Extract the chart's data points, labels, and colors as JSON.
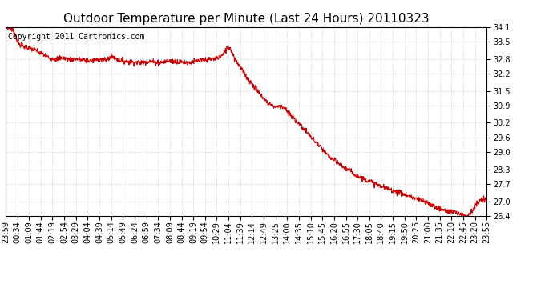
{
  "title": "Outdoor Temperature per Minute (Last 24 Hours) 20110323",
  "copyright_text": "Copyright 2011 Cartronics.com",
  "line_color": "#cc0000",
  "background_color": "#ffffff",
  "grid_color": "#bbbbbb",
  "ylim": [
    26.4,
    34.1
  ],
  "yticks": [
    26.4,
    27.0,
    27.7,
    28.3,
    29.0,
    29.6,
    30.2,
    30.9,
    31.5,
    32.2,
    32.8,
    33.5,
    34.1
  ],
  "xtick_labels": [
    "23:59",
    "00:34",
    "01:09",
    "01:44",
    "02:19",
    "02:54",
    "03:29",
    "04:04",
    "04:39",
    "05:14",
    "05:49",
    "06:24",
    "06:59",
    "07:34",
    "08:09",
    "08:44",
    "09:19",
    "09:54",
    "10:29",
    "11:04",
    "11:39",
    "12:14",
    "12:49",
    "13:25",
    "14:00",
    "14:35",
    "15:10",
    "15:45",
    "16:20",
    "16:55",
    "17:30",
    "18:05",
    "18:40",
    "19:15",
    "19:50",
    "20:25",
    "21:00",
    "21:35",
    "22:10",
    "22:45",
    "23:20",
    "23:55"
  ],
  "title_fontsize": 11,
  "tick_fontsize": 7,
  "copyright_fontsize": 7,
  "line_width": 0.8,
  "waypoints": [
    [
      0,
      34.1
    ],
    [
      10,
      34.08
    ],
    [
      20,
      34.0
    ],
    [
      30,
      33.75
    ],
    [
      40,
      33.4
    ],
    [
      55,
      33.3
    ],
    [
      70,
      33.25
    ],
    [
      90,
      33.15
    ],
    [
      110,
      33.0
    ],
    [
      130,
      32.85
    ],
    [
      150,
      32.8
    ],
    [
      170,
      32.85
    ],
    [
      190,
      32.78
    ],
    [
      210,
      32.8
    ],
    [
      230,
      32.75
    ],
    [
      260,
      32.72
    ],
    [
      280,
      32.8
    ],
    [
      300,
      32.75
    ],
    [
      320,
      32.9
    ],
    [
      340,
      32.75
    ],
    [
      370,
      32.68
    ],
    [
      400,
      32.65
    ],
    [
      430,
      32.7
    ],
    [
      460,
      32.65
    ],
    [
      490,
      32.72
    ],
    [
      520,
      32.68
    ],
    [
      550,
      32.65
    ],
    [
      580,
      32.72
    ],
    [
      610,
      32.78
    ],
    [
      630,
      32.82
    ],
    [
      650,
      32.95
    ],
    [
      665,
      33.28
    ],
    [
      672,
      33.25
    ],
    [
      685,
      32.85
    ],
    [
      705,
      32.4
    ],
    [
      725,
      32.0
    ],
    [
      745,
      31.65
    ],
    [
      765,
      31.3
    ],
    [
      785,
      31.0
    ],
    [
      805,
      30.85
    ],
    [
      825,
      30.88
    ],
    [
      835,
      30.8
    ],
    [
      845,
      30.6
    ],
    [
      865,
      30.35
    ],
    [
      885,
      30.05
    ],
    [
      905,
      29.75
    ],
    [
      925,
      29.45
    ],
    [
      945,
      29.15
    ],
    [
      965,
      28.85
    ],
    [
      985,
      28.65
    ],
    [
      1005,
      28.45
    ],
    [
      1025,
      28.28
    ],
    [
      1045,
      28.1
    ],
    [
      1065,
      27.95
    ],
    [
      1085,
      27.85
    ],
    [
      1105,
      27.72
    ],
    [
      1125,
      27.6
    ],
    [
      1145,
      27.5
    ],
    [
      1165,
      27.42
    ],
    [
      1185,
      27.32
    ],
    [
      1205,
      27.22
    ],
    [
      1225,
      27.12
    ],
    [
      1245,
      27.02
    ],
    [
      1265,
      26.92
    ],
    [
      1285,
      26.78
    ],
    [
      1305,
      26.65
    ],
    [
      1330,
      26.58
    ],
    [
      1355,
      26.52
    ],
    [
      1368,
      26.47
    ],
    [
      1378,
      26.42
    ],
    [
      1388,
      26.48
    ],
    [
      1398,
      26.65
    ],
    [
      1408,
      26.85
    ],
    [
      1418,
      27.0
    ],
    [
      1428,
      27.05
    ],
    [
      1439,
      27.05
    ]
  ],
  "noise_seed": 7,
  "noise_std": 0.055
}
